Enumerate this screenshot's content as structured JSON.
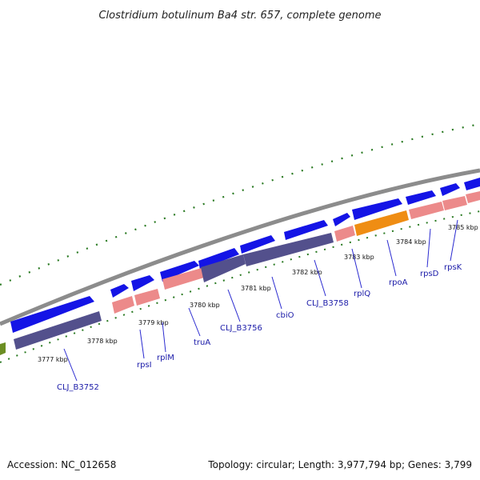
{
  "title": "Clostridium botulinum Ba4 str. 657, complete genome",
  "footer": {
    "accession": "Accession: NC_012658",
    "summary": "Topology: circular; Length: 3,977,794 bp; Genes: 3,799"
  },
  "colors": {
    "backbone": "#8c8c8c",
    "cds": "#1414e6",
    "gene": "#53508c",
    "rna": "#ec8a8a",
    "highlight_gene": "#ef8d13",
    "ticks": "#2a7a22",
    "label_line": "#2b2bd0",
    "prev_feature": "#6b8e23"
  },
  "ticks": [
    {
      "kbp": 3777,
      "label": "3777 kbp"
    },
    {
      "kbp": 3778,
      "label": "3778 kbp"
    },
    {
      "kbp": 3779,
      "label": "3779 kbp"
    },
    {
      "kbp": 3780,
      "label": "3780 kbp"
    },
    {
      "kbp": 3781,
      "label": "3781 kbp"
    },
    {
      "kbp": 3782,
      "label": "3782 kbp"
    },
    {
      "kbp": 3783,
      "label": "3783 kbp"
    },
    {
      "kbp": 3784,
      "label": "3784 kbp"
    },
    {
      "kbp": 3785,
      "label": "3785 kbp"
    }
  ],
  "gene_labels": [
    {
      "name": "CLJ_B3752"
    },
    {
      "name": "rpsI"
    },
    {
      "name": "rplM"
    },
    {
      "name": "truA"
    },
    {
      "name": "CLJ_B3756"
    },
    {
      "name": "cbiO"
    },
    {
      "name": "CLJ_B3758"
    },
    {
      "name": "rplQ"
    },
    {
      "name": "rpoA"
    },
    {
      "name": "rpsD"
    },
    {
      "name": "rpsK"
    }
  ]
}
